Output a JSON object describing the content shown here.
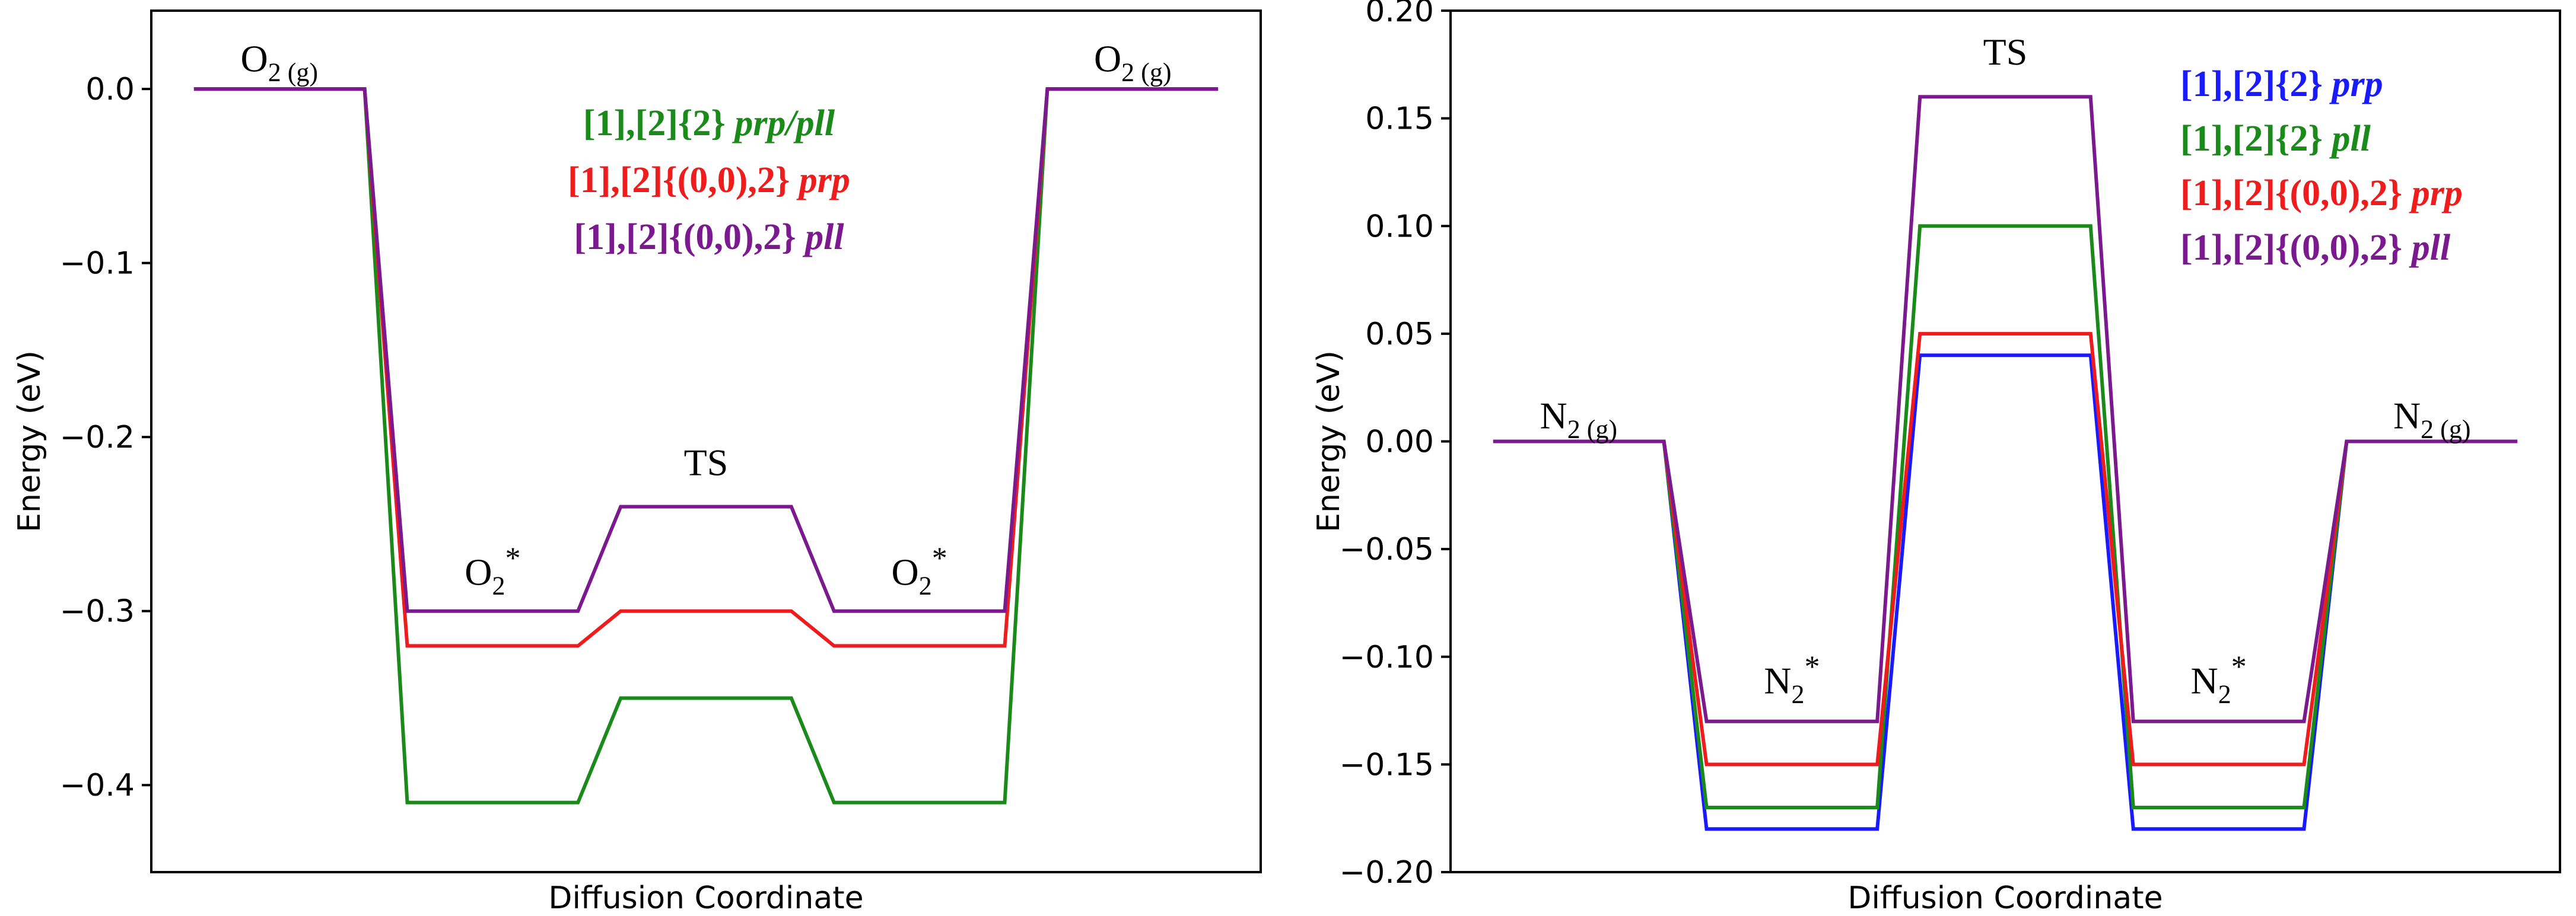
{
  "chart_data": [
    {
      "type": "line",
      "title": "",
      "xlabel": "Diffusion Coordinate",
      "ylabel": "Energy (eV)",
      "ylim": [
        -0.45,
        0.045
      ],
      "yticks": [
        0.0,
        -0.1,
        -0.2,
        -0.3,
        -0.4
      ],
      "ytick_labels": [
        "0.0",
        "−0.1",
        "−0.2",
        "−0.3",
        "−0.4"
      ],
      "x": [
        0.0,
        1.0,
        1.25,
        2.25,
        2.5,
        3.5,
        3.75,
        4.75,
        5.0,
        6.0
      ],
      "xlim": [
        -0.25,
        6.25
      ],
      "series": [
        {
          "name": "[1],[2]{2}",
          "suffix": " prp/pll",
          "color": "#1a8a1a",
          "values": [
            0,
            0,
            -0.41,
            -0.41,
            -0.35,
            -0.35,
            -0.41,
            -0.41,
            0,
            0
          ]
        },
        {
          "name": "[1],[2]{(0,0),2}",
          "suffix": " prp",
          "color": "#ee1c1c",
          "values": [
            0,
            0,
            -0.32,
            -0.32,
            -0.3,
            -0.3,
            -0.32,
            -0.32,
            0,
            0
          ]
        },
        {
          "name": "[1],[2]{(0,0),2}",
          "suffix": " pll",
          "color": "#7b1a8e",
          "values": [
            0,
            0,
            -0.3,
            -0.3,
            -0.24,
            -0.24,
            -0.3,
            -0.3,
            0,
            0
          ]
        }
      ],
      "annotations": [
        {
          "base": "O",
          "sub": "2 (g)",
          "sup": "",
          "x": 0.5,
          "y": 0.01
        },
        {
          "base": "O",
          "sub": "2",
          "sup": "*",
          "x": 1.75,
          "y": -0.285
        },
        {
          "base": "TS",
          "sub": "",
          "sup": "",
          "x": 3.0,
          "y": -0.222
        },
        {
          "base": "O",
          "sub": "2",
          "sup": "*",
          "x": 4.25,
          "y": -0.285
        },
        {
          "base": "O",
          "sub": "2 (g)",
          "sup": "",
          "x": 5.5,
          "y": 0.01
        }
      ],
      "legend_position": "top-center"
    },
    {
      "type": "line",
      "title": "",
      "xlabel": "Diffusion Coordinate",
      "ylabel": "Energy (eV)",
      "ylim": [
        -0.2,
        0.2
      ],
      "yticks": [
        0.2,
        0.15,
        0.1,
        0.05,
        0.0,
        -0.05,
        -0.1,
        -0.15,
        -0.2
      ],
      "ytick_labels": [
        "0.20",
        "0.15",
        "0.10",
        "0.05",
        "0.00",
        "−0.05",
        "−0.10",
        "−0.15",
        "−0.20"
      ],
      "x": [
        0.0,
        1.0,
        1.25,
        2.25,
        2.5,
        3.5,
        3.75,
        4.75,
        5.0,
        6.0
      ],
      "xlim": [
        -0.25,
        6.25
      ],
      "series": [
        {
          "name": "[1],[2]{2}",
          "suffix": " prp",
          "color": "#1a1aff",
          "values": [
            0,
            0,
            -0.18,
            -0.18,
            0.04,
            0.04,
            -0.18,
            -0.18,
            0,
            0
          ]
        },
        {
          "name": "[1],[2]{2}",
          "suffix": " pll",
          "color": "#1a8a1a",
          "values": [
            0,
            0,
            -0.17,
            -0.17,
            0.1,
            0.1,
            -0.17,
            -0.17,
            0,
            0
          ]
        },
        {
          "name": "[1],[2]{(0,0),2}",
          "suffix": " prp",
          "color": "#ee1c1c",
          "values": [
            0,
            0,
            -0.15,
            -0.15,
            0.05,
            0.05,
            -0.15,
            -0.15,
            0,
            0
          ]
        },
        {
          "name": "[1],[2]{(0,0),2}",
          "suffix": " pll",
          "color": "#7b1a8e",
          "values": [
            0,
            0,
            -0.13,
            -0.13,
            0.16,
            0.16,
            -0.13,
            -0.13,
            0,
            0
          ]
        }
      ],
      "annotations": [
        {
          "base": "N",
          "sub": "2 (g)",
          "sup": "",
          "x": 0.5,
          "y": 0.006
        },
        {
          "base": "N",
          "sub": "2",
          "sup": "*",
          "x": 1.75,
          "y": -0.117
        },
        {
          "base": "TS",
          "sub": "",
          "sup": "",
          "x": 3.0,
          "y": 0.175
        },
        {
          "base": "N",
          "sub": "2",
          "sup": "*",
          "x": 4.25,
          "y": -0.117
        },
        {
          "base": "N",
          "sub": "2 (g)",
          "sup": "",
          "x": 5.5,
          "y": 0.006
        }
      ],
      "legend_position": "top-right"
    }
  ]
}
